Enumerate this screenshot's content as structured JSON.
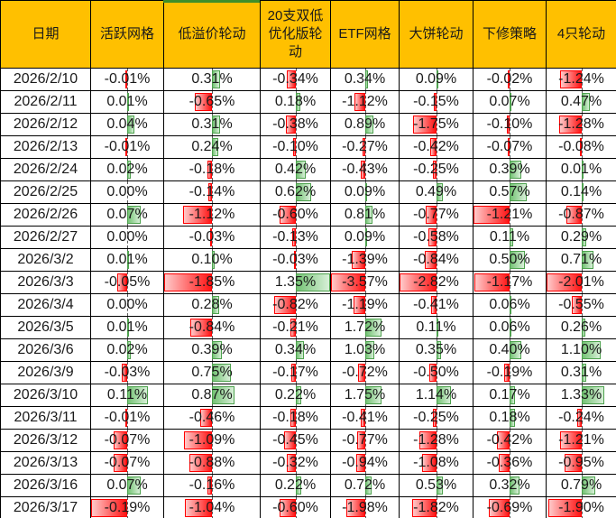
{
  "table": {
    "columns": [
      {
        "label": "日期"
      },
      {
        "label": "活跃网格"
      },
      {
        "label": "低溢价轮动"
      },
      {
        "label": "20支双低优化版轮动"
      },
      {
        "label": "ETF网格"
      },
      {
        "label": "大饼轮动"
      },
      {
        "label": "下修策略"
      },
      {
        "label": "4只轮动"
      }
    ],
    "value_suffix": "%",
    "rows": [
      {
        "date": "2026/2/10",
        "values": [
          -0.01,
          0.31,
          -0.34,
          0.34,
          0.09,
          -0.02,
          -1.24
        ]
      },
      {
        "date": "2026/2/11",
        "values": [
          0.01,
          -0.65,
          0.18,
          -1.12,
          -0.15,
          0.07,
          0.47
        ]
      },
      {
        "date": "2026/2/12",
        "values": [
          0.04,
          0.31,
          -0.38,
          0.89,
          -1.75,
          -0.1,
          -1.28
        ]
      },
      {
        "date": "2026/2/13",
        "values": [
          -0.01,
          0.24,
          -0.1,
          -0.27,
          -0.42,
          -0.07,
          -0.08
        ]
      },
      {
        "date": "2026/2/24",
        "values": [
          0.02,
          -0.18,
          0.42,
          -0.43,
          -0.25,
          0.39,
          0.01
        ]
      },
      {
        "date": "2026/2/25",
        "values": [
          0.0,
          -0.14,
          0.62,
          0.09,
          0.49,
          0.57,
          0.14
        ]
      },
      {
        "date": "2026/2/26",
        "values": [
          0.07,
          -1.12,
          -0.6,
          0.81,
          -0.77,
          -1.21,
          -0.87
        ]
      },
      {
        "date": "2026/2/27",
        "values": [
          0.0,
          -0.03,
          -0.13,
          0.09,
          -0.58,
          0.11,
          0.29
        ]
      },
      {
        "date": "2026/3/2",
        "values": [
          0.01,
          0.1,
          -0.03,
          -1.39,
          -0.84,
          0.5,
          0.71
        ]
      },
      {
        "date": "2026/3/3",
        "values": [
          -0.05,
          -1.85,
          1.35,
          -3.57,
          -2.82,
          -1.17,
          -2.01
        ]
      },
      {
        "date": "2026/3/4",
        "values": [
          0.0,
          0.28,
          -0.82,
          -1.19,
          -0.41,
          0.06,
          -0.55
        ]
      },
      {
        "date": "2026/3/5",
        "values": [
          0.01,
          -0.84,
          -0.21,
          1.72,
          0.11,
          0.06,
          0.26
        ]
      },
      {
        "date": "2026/3/6",
        "values": [
          0.02,
          0.39,
          0.34,
          1.03,
          0.35,
          0.4,
          1.1
        ]
      },
      {
        "date": "2026/3/9",
        "values": [
          -0.03,
          0.75,
          -0.17,
          -0.72,
          -0.5,
          -0.19,
          0.31
        ]
      },
      {
        "date": "2026/3/10",
        "values": [
          0.11,
          0.87,
          0.22,
          1.75,
          1.14,
          0.17,
          1.33
        ]
      },
      {
        "date": "2026/3/11",
        "values": [
          -0.01,
          -0.46,
          -0.18,
          -0.41,
          -0.25,
          0.18,
          -0.24
        ]
      },
      {
        "date": "2026/3/12",
        "values": [
          -0.07,
          -1.09,
          -0.45,
          -0.77,
          -1.28,
          -0.42,
          -1.21
        ]
      },
      {
        "date": "2026/3/13",
        "values": [
          -0.07,
          -0.88,
          -0.32,
          -0.94,
          -1.08,
          -0.36,
          -0.95
        ]
      },
      {
        "date": "2026/3/16",
        "values": [
          0.07,
          -0.16,
          0.22,
          0.72,
          0.53,
          0.32,
          0.79
        ]
      },
      {
        "date": "2026/3/17",
        "values": [
          -0.19,
          -1.04,
          -0.6,
          -1.98,
          -1.82,
          -0.69,
          -1.9
        ]
      }
    ]
  },
  "colors": {
    "header_bg": "#FFC000",
    "grid_border": "#000000",
    "text": "#1A1A1A",
    "axis_dash": "#5A5A5A",
    "negative_bar_border": "#FF0000",
    "negative_bar_fill_strong": "#FF1414",
    "negative_bar_fill_light": "#FFC9C9",
    "positive_bar_border": "#4EA24E",
    "positive_bar_fill_strong": "#74C374",
    "positive_bar_fill_light": "#D8EFD8",
    "top_strip": "#3F8F2A"
  }
}
